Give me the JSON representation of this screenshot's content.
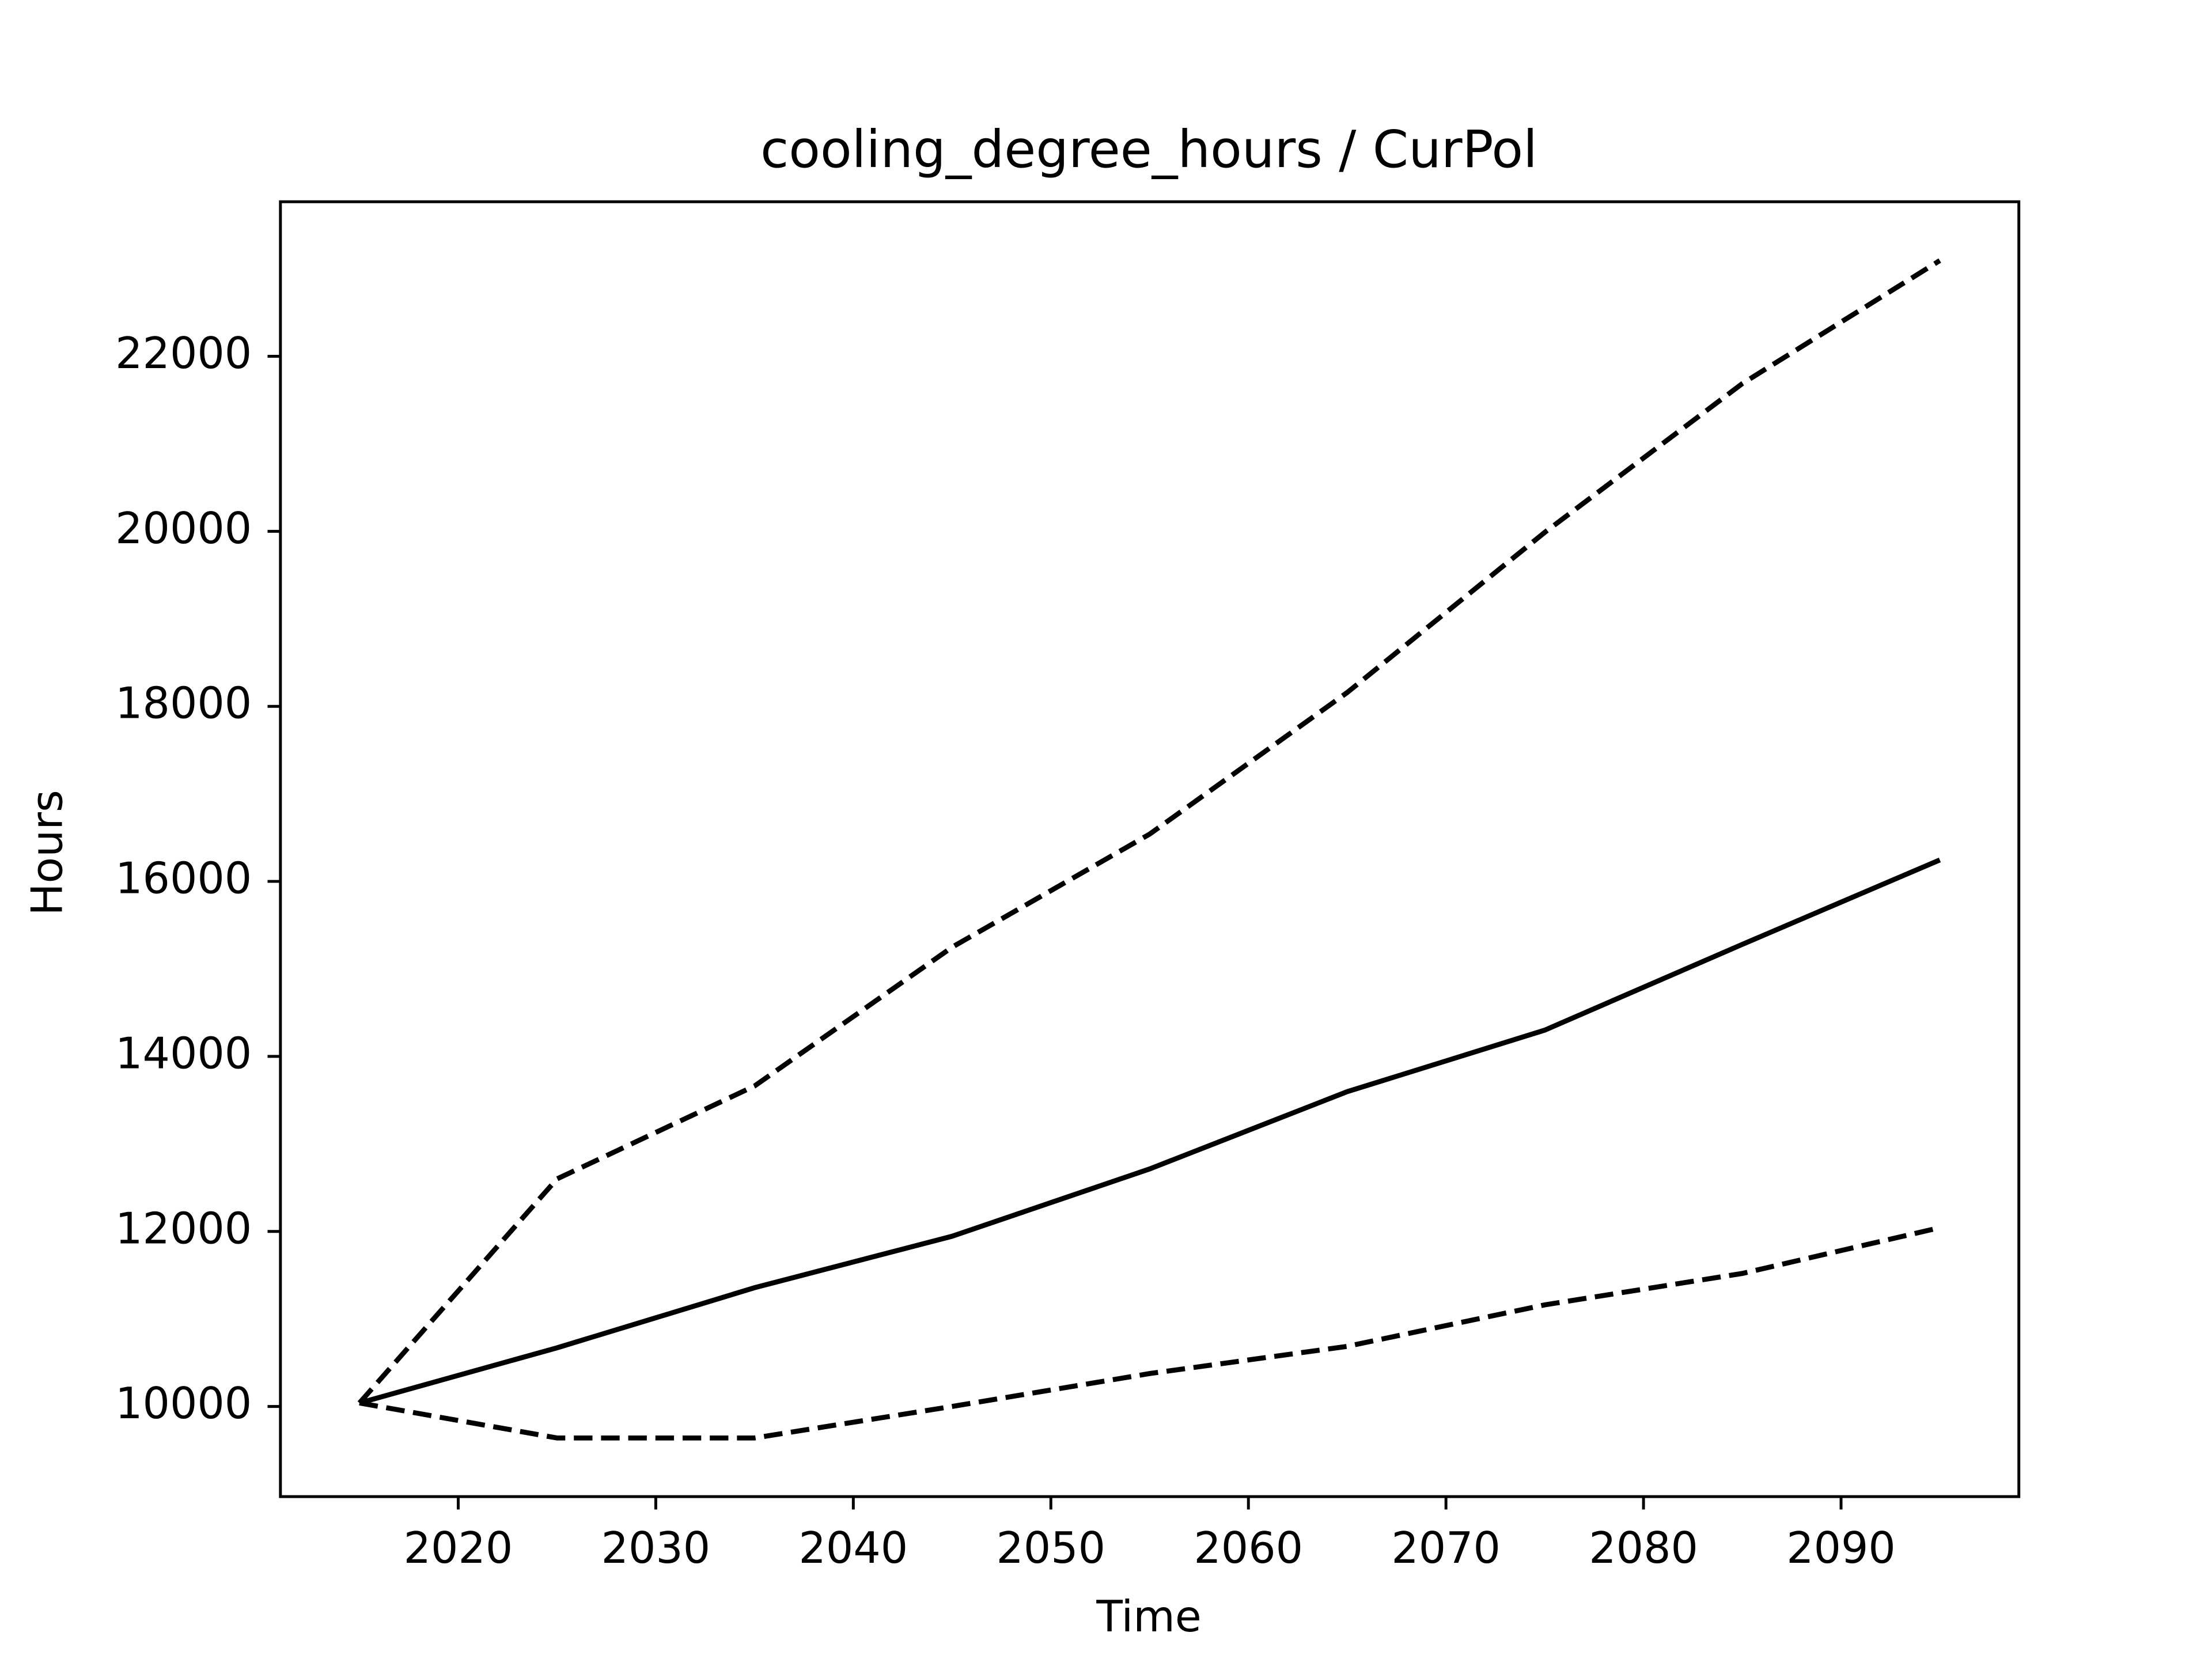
{
  "chart_data": {
    "type": "line",
    "title": "cooling_degree_hours / CurPol",
    "x_label": "Time",
    "y_label": "Hours",
    "x": [
      2015,
      2025,
      2035,
      2045,
      2055,
      2065,
      2075,
      2085,
      2095
    ],
    "series": [
      {
        "color": "#000000",
        "dashed": false,
        "values": [
          10040,
          10670,
          11357,
          11945,
          12714,
          13597,
          14300,
          15280,
          16245
        ]
      },
      {
        "color": "#000000",
        "dashed": true,
        "values": [
          10040,
          12600,
          13662,
          15248,
          16540,
          18158,
          19988,
          21688,
          23094
        ]
      },
      {
        "color": "#000000",
        "dashed": true,
        "values": [
          10040,
          9640,
          9640,
          10000,
          10376,
          10687,
          11161,
          11520,
          12043
        ]
      }
    ],
    "xlim": [
      2011,
      2099
    ],
    "ylim": [
      8970,
      23766
    ],
    "xticks": [
      2020,
      2030,
      2040,
      2050,
      2060,
      2070,
      2080,
      2090
    ],
    "yticks": [
      10000,
      12000,
      14000,
      16000,
      18000,
      20000,
      22000
    ],
    "grid": false
  }
}
